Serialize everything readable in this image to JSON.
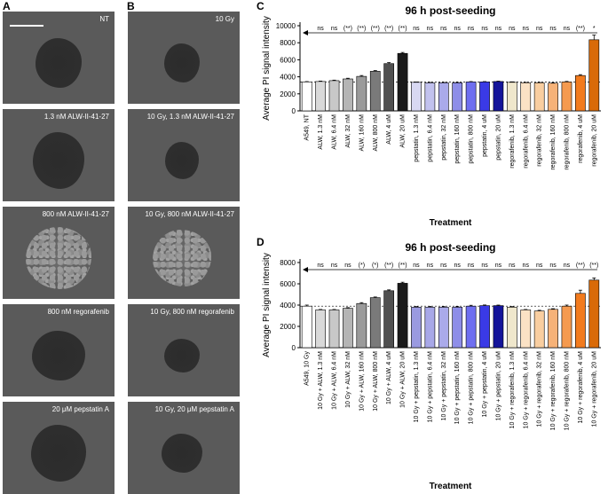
{
  "panels": {
    "a": "A",
    "b": "B",
    "c": "C",
    "d": "D"
  },
  "tiles_a": [
    {
      "label": "NT",
      "spheroid": "dark"
    },
    {
      "label": "1.3 nM ALW-II-41-27",
      "spheroid": "dark"
    },
    {
      "label": "800 nM ALW-II-41-27",
      "spheroid": "textured"
    },
    {
      "label": "800 nM regorafenib",
      "spheroid": "dark"
    },
    {
      "label": "20 μM pepstatin A",
      "spheroid": "dark"
    }
  ],
  "tiles_b": [
    {
      "label": "10 Gy",
      "spheroid": "dark"
    },
    {
      "label": "10 Gy, 1.3 nM ALW-II-41-27",
      "spheroid": "dark"
    },
    {
      "label": "10 Gy, 800 nM ALW-II-41-27",
      "spheroid": "textured"
    },
    {
      "label": "10 Gy, 800 nM regorafenib",
      "spheroid": "dark"
    },
    {
      "label": "10 Gy, 20 μM pepstatin A",
      "spheroid": "dark"
    }
  ],
  "chart_data": [
    {
      "type": "bar",
      "title": "96 h post-seeding",
      "xlabel": "Treatment",
      "ylabel": "Average PI signal intensity",
      "ylim": [
        0,
        10000
      ],
      "yticks": [
        0,
        2000,
        4000,
        6000,
        8000,
        10000
      ],
      "baseline_reference": 3400,
      "categories": [
        "A549, NT",
        "ALW, 1.3 nM",
        "ALW, 6.4 nM",
        "ALW, 32 nM",
        "ALW, 160 nM",
        "ALW, 800 nM",
        "ALW, 4 uM",
        "ALW, 20 uM",
        "pepstatin, 1.3 nM",
        "pepstatin, 6.4 nM",
        "pepstatin, 32 nM",
        "pepstatin, 160 nM",
        "pepstatin, 800 nM",
        "pepstatin, 4 uM",
        "pepstatin, 20 uM",
        "regorafenib, 1.3 nM",
        "regorafenib, 6.4 nM",
        "regorafenib, 32 nM",
        "regorafenib, 160 nM",
        "regorafenib, 800 nM",
        "regorafenib, 4 uM",
        "regorafenib, 20 uM"
      ],
      "values": [
        3400,
        3450,
        3550,
        3750,
        4050,
        4650,
        5550,
        6750,
        3350,
        3300,
        3300,
        3300,
        3400,
        3400,
        3450,
        3350,
        3300,
        3300,
        3250,
        3400,
        4150,
        8350
      ],
      "errors": [
        40,
        50,
        60,
        80,
        100,
        80,
        120,
        110,
        40,
        40,
        40,
        40,
        40,
        40,
        40,
        60,
        40,
        40,
        40,
        60,
        100,
        550
      ],
      "significance": [
        "",
        "ns",
        "ns",
        "(**)",
        "(**)",
        "(**)",
        "(**)",
        "(**)",
        "ns",
        "ns",
        "ns",
        "ns",
        "ns",
        "ns",
        "ns",
        "ns",
        "ns",
        "ns",
        "ns",
        "ns",
        "(**)",
        "*"
      ],
      "colors": [
        "#ffffff",
        "#d9d9d9",
        "#c8c8c8",
        "#b5b5b5",
        "#9a9a9a",
        "#7a7a7a",
        "#505050",
        "#1a1a1a",
        "#d8d8f2",
        "#c2c2ee",
        "#aaaaea",
        "#8e8ee8",
        "#6f6ff0",
        "#3a3ae6",
        "#14149a",
        "#efe7cc",
        "#fbe2c5",
        "#f9cea0",
        "#f6b278",
        "#f59a4f",
        "#f27b1e",
        "#d96a08"
      ]
    },
    {
      "type": "bar",
      "title": "96 h post-seeding",
      "xlabel": "Treatment",
      "ylabel": "Average PI signal intensity",
      "ylim": [
        0,
        8000
      ],
      "yticks": [
        0,
        2000,
        4000,
        6000,
        8000
      ],
      "baseline_reference": 3900,
      "categories": [
        "A549, 10 Gy",
        "10 Gy + ALW, 1.3 nM",
        "10 Gy + ALW, 6.4 nM",
        "10 Gy + ALW, 32 nM",
        "10 Gy + ALW, 160 nM",
        "10 Gy + ALW, 800 nM",
        "10 Gy + ALW, 4 uM",
        "10 Gy + ALW, 20 uM",
        "10 Gy + pepstatin, 1.3 nM",
        "10 Gy + pepstatin, 6.4 nM",
        "10 Gy + pepstatin, 32 nM",
        "10 Gy + pepstatin, 160 nM",
        "10 Gy + pepstatin, 800 nM",
        "10 Gy + pepstatin, 4 uM",
        "10 Gy + pepstatin, 20 uM",
        "10 Gy + regorafenib, 1.3 nM",
        "10 Gy + regorafenib, 6.4 nM",
        "10 Gy + regorafenib, 32 nM",
        "10 Gy + regorafenib, 160 nM",
        "10 Gy + regorafenib, 800 nM",
        "10 Gy + regorafenib, 4 uM",
        "10 Gy + regorafenib, 20 uM"
      ],
      "values": [
        3900,
        3550,
        3550,
        3700,
        4150,
        4700,
        5350,
        6050,
        3800,
        3800,
        3800,
        3800,
        3900,
        3950,
        3950,
        3800,
        3550,
        3450,
        3600,
        3900,
        5100,
        6350
      ],
      "errors": [
        100,
        40,
        40,
        60,
        80,
        60,
        80,
        100,
        60,
        80,
        60,
        60,
        80,
        60,
        50,
        60,
        40,
        60,
        60,
        100,
        300,
        200
      ],
      "significance": [
        "",
        "ns",
        "ns",
        "ns",
        "(*)",
        "(*)",
        "(**)",
        "(**)",
        "ns",
        "ns",
        "ns",
        "ns",
        "ns",
        "ns",
        "ns",
        "ns",
        "ns",
        "ns",
        "ns",
        "ns",
        "(**)",
        "(**)"
      ],
      "colors": [
        "#ffffff",
        "#d9d9d9",
        "#c8c8c8",
        "#b5b5b5",
        "#9a9a9a",
        "#7a7a7a",
        "#505050",
        "#1a1a1a",
        "#9a9ae0",
        "#a8a8e8",
        "#aaaaea",
        "#8e8ee8",
        "#6f6ff0",
        "#3a3ae6",
        "#14149a",
        "#efe7cc",
        "#fbe2c5",
        "#f9cea0",
        "#f6b278",
        "#f59a4f",
        "#f27b1e",
        "#d96a08"
      ]
    }
  ]
}
